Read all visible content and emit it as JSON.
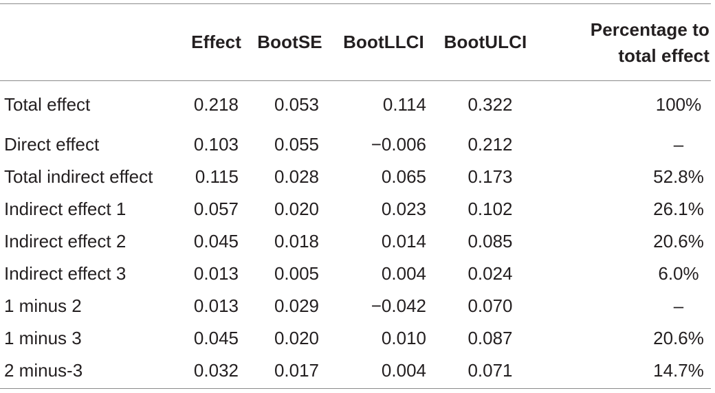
{
  "table": {
    "headers": {
      "label": "",
      "effect": "Effect",
      "bootse": "BootSE",
      "bootllci": "BootLLCI",
      "bootulci": "BootULCI",
      "percentage_line1": "Percentage to",
      "percentage_line2": "total effect"
    },
    "rows": [
      {
        "label": "Total effect",
        "effect": "0.218",
        "bootse": "0.053",
        "bootllci": "0.114",
        "bootulci": "0.322",
        "percentage": "100%"
      },
      {
        "label": "Direct effect",
        "effect": "0.103",
        "bootse": "0.055",
        "bootllci": "−0.006",
        "bootulci": "0.212",
        "percentage": "–"
      },
      {
        "label": "Total indirect effect",
        "effect": "0.115",
        "bootse": "0.028",
        "bootllci": "0.065",
        "bootulci": "0.173",
        "percentage": "52.8%"
      },
      {
        "label": "Indirect effect 1",
        "effect": "0.057",
        "bootse": "0.020",
        "bootllci": "0.023",
        "bootulci": "0.102",
        "percentage": "26.1%"
      },
      {
        "label": "Indirect effect 2",
        "effect": "0.045",
        "bootse": "0.018",
        "bootllci": "0.014",
        "bootulci": "0.085",
        "percentage": "20.6%"
      },
      {
        "label": "Indirect effect 3",
        "effect": "0.013",
        "bootse": "0.005",
        "bootllci": "0.004",
        "bootulci": "0.024",
        "percentage": "6.0%"
      },
      {
        "label": "1 minus 2",
        "effect": "0.013",
        "bootse": "0.029",
        "bootllci": "−0.042",
        "bootulci": "0.070",
        "percentage": "–"
      },
      {
        "label": "1 minus 3",
        "effect": "0.045",
        "bootse": "0.020",
        "bootllci": "0.010",
        "bootulci": "0.087",
        "percentage": "20.6%"
      },
      {
        "label": "2 minus-3",
        "effect": "0.032",
        "bootse": "0.017",
        "bootllci": "0.004",
        "bootulci": "0.071",
        "percentage": "14.7%"
      }
    ]
  }
}
